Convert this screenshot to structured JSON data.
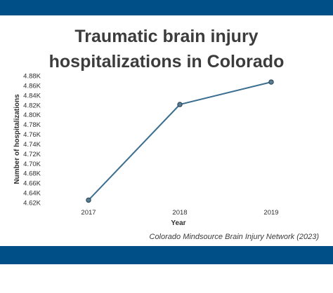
{
  "colors": {
    "band": "#005087",
    "line": "#3b6e8f",
    "marker_fill": "#5a7d8f",
    "text": "#3c3c3c"
  },
  "title_lines": [
    "Traumatic brain injury",
    "hospitalizations in Colorado"
  ],
  "source": "Colorado Mindsource Brain Injury Network (2023)",
  "chart_data": {
    "type": "line",
    "title": "Traumatic brain injury hospitalizations in Colorado",
    "xlabel": "Year",
    "ylabel": "Number of hospitalizations",
    "categories": [
      "2017",
      "2018",
      "2019"
    ],
    "series": [
      {
        "values": [
          4625,
          4821,
          4867
        ]
      }
    ],
    "ylim": [
      4620,
      4880
    ],
    "y_ticks": [
      4880,
      4860,
      4840,
      4820,
      4800,
      4780,
      4760,
      4740,
      4720,
      4700,
      4680,
      4660,
      4640,
      4620
    ],
    "y_tick_labels": [
      "4.88K",
      "4.86K",
      "4.84K",
      "4.82K",
      "4.80K",
      "4.78K",
      "4.76K",
      "4.74K",
      "4.72K",
      "4.70K",
      "4.68K",
      "4.66K",
      "4.64K",
      "4.62K"
    ],
    "grid": false,
    "legend": "none"
  }
}
